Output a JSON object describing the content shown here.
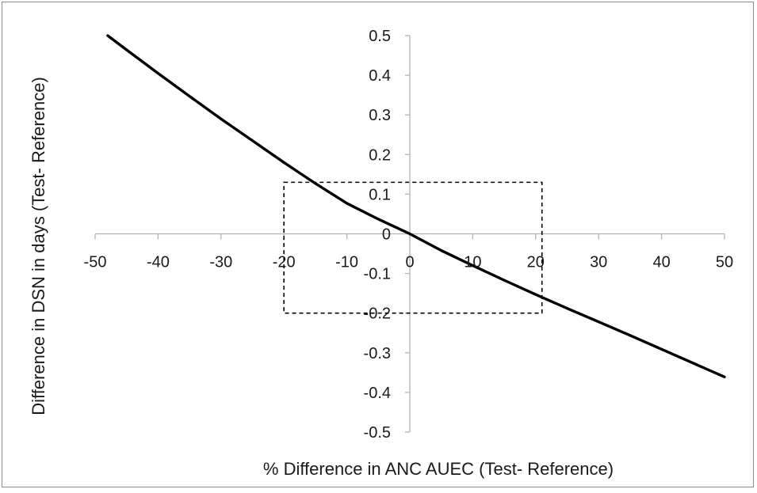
{
  "chart_data": {
    "type": "line",
    "title": "",
    "xlabel": "% Difference in ANC AUEC (Test- Reference)",
    "ylabel": "Difference in DSN in days (Test- Reference)",
    "xlim": [
      -50,
      50
    ],
    "ylim": [
      -0.5,
      0.5
    ],
    "x_ticks": [
      -50,
      -40,
      -30,
      -20,
      -10,
      0,
      10,
      20,
      30,
      40,
      50
    ],
    "y_ticks": [
      0.5,
      0.4,
      0.3,
      0.2,
      0.1,
      0,
      -0.1,
      -0.2,
      -0.3,
      -0.4,
      -0.5
    ],
    "x_tick_labels": [
      "-50",
      "-40",
      "-30",
      "-20",
      "-10",
      "0",
      "10",
      "20",
      "30",
      "40",
      "50"
    ],
    "y_tick_labels": [
      "0.5",
      "0.4",
      "0.3",
      "0.2",
      "0.1",
      "0",
      "-0.1",
      "-0.2",
      "-0.3",
      "-0.4",
      "-0.5"
    ],
    "grid": false,
    "legend": "none",
    "series": [
      {
        "color": "#000000",
        "x": [
          -48,
          -45,
          -40,
          -35,
          -30,
          -25,
          -20,
          -15,
          -10,
          -5,
          0,
          5,
          10,
          15,
          20,
          25,
          30,
          35,
          40,
          45,
          50
        ],
        "y": [
          0.5,
          0.464,
          0.405,
          0.347,
          0.29,
          0.235,
          0.18,
          0.127,
          0.077,
          0.037,
          0.0,
          -0.042,
          -0.08,
          -0.117,
          -0.153,
          -0.188,
          -0.222,
          -0.256,
          -0.291,
          -0.326,
          -0.361
        ]
      }
    ],
    "annotations": [
      {
        "type": "dashed-rectangle",
        "x": [
          -20,
          21
        ],
        "y": [
          -0.2,
          0.13
        ],
        "color": "#000000"
      }
    ]
  }
}
